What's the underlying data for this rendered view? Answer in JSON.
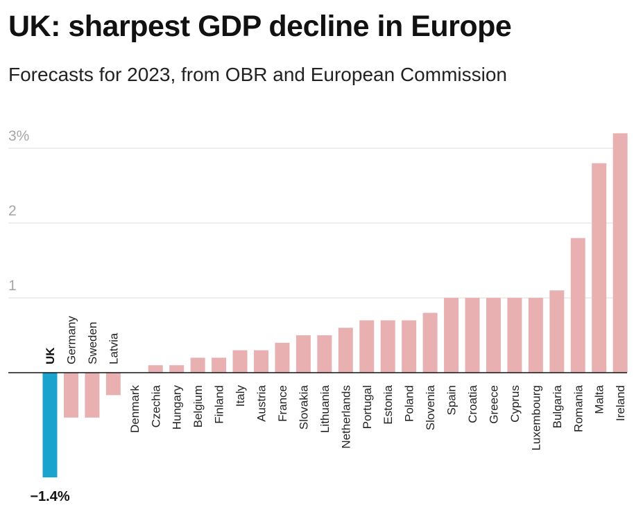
{
  "title": "UK: sharpest GDP decline in Europe",
  "subtitle": "Forecasts for 2023, from OBR and European Commission",
  "chart_data": {
    "type": "bar",
    "title": "UK: sharpest GDP decline in Europe",
    "subtitle": "Forecasts for 2023, from OBR and European Commission",
    "xlabel": "",
    "ylabel": "",
    "ylim": [
      -1.4,
      3.3
    ],
    "yticks": [
      1,
      2,
      3
    ],
    "ytick_labels": [
      "1",
      "2",
      "3%"
    ],
    "grid": true,
    "categories": [
      "UK",
      "Germany",
      "Sweden",
      "Latvia",
      "Denmark",
      "Czechia",
      "Hungary",
      "Belgium",
      "Finland",
      "Italy",
      "Austria",
      "France",
      "Slovakia",
      "Lithuania",
      "Netherlands",
      "Portugal",
      "Estonia",
      "Poland",
      "Slovenia",
      "Spain",
      "Croatia",
      "Greece",
      "Cyprus",
      "Luxembourg",
      "Bulgaria",
      "Romania",
      "Malta",
      "Ireland"
    ],
    "values": [
      -1.4,
      -0.6,
      -0.6,
      -0.3,
      0.0,
      0.1,
      0.1,
      0.2,
      0.2,
      0.3,
      0.3,
      0.4,
      0.5,
      0.5,
      0.6,
      0.7,
      0.7,
      0.7,
      0.8,
      1.0,
      1.0,
      1.0,
      1.0,
      1.0,
      1.1,
      1.8,
      2.8,
      3.2
    ],
    "highlight": "UK",
    "data_labels": [
      {
        "category": "UK",
        "text": "−1.4%"
      }
    ],
    "colors": {
      "highlight": "#1aa3cc",
      "default": "#e8b0b0",
      "grid": "#dddddd",
      "zero_line": "#111111",
      "tick_text": "#a6a6a6"
    }
  }
}
